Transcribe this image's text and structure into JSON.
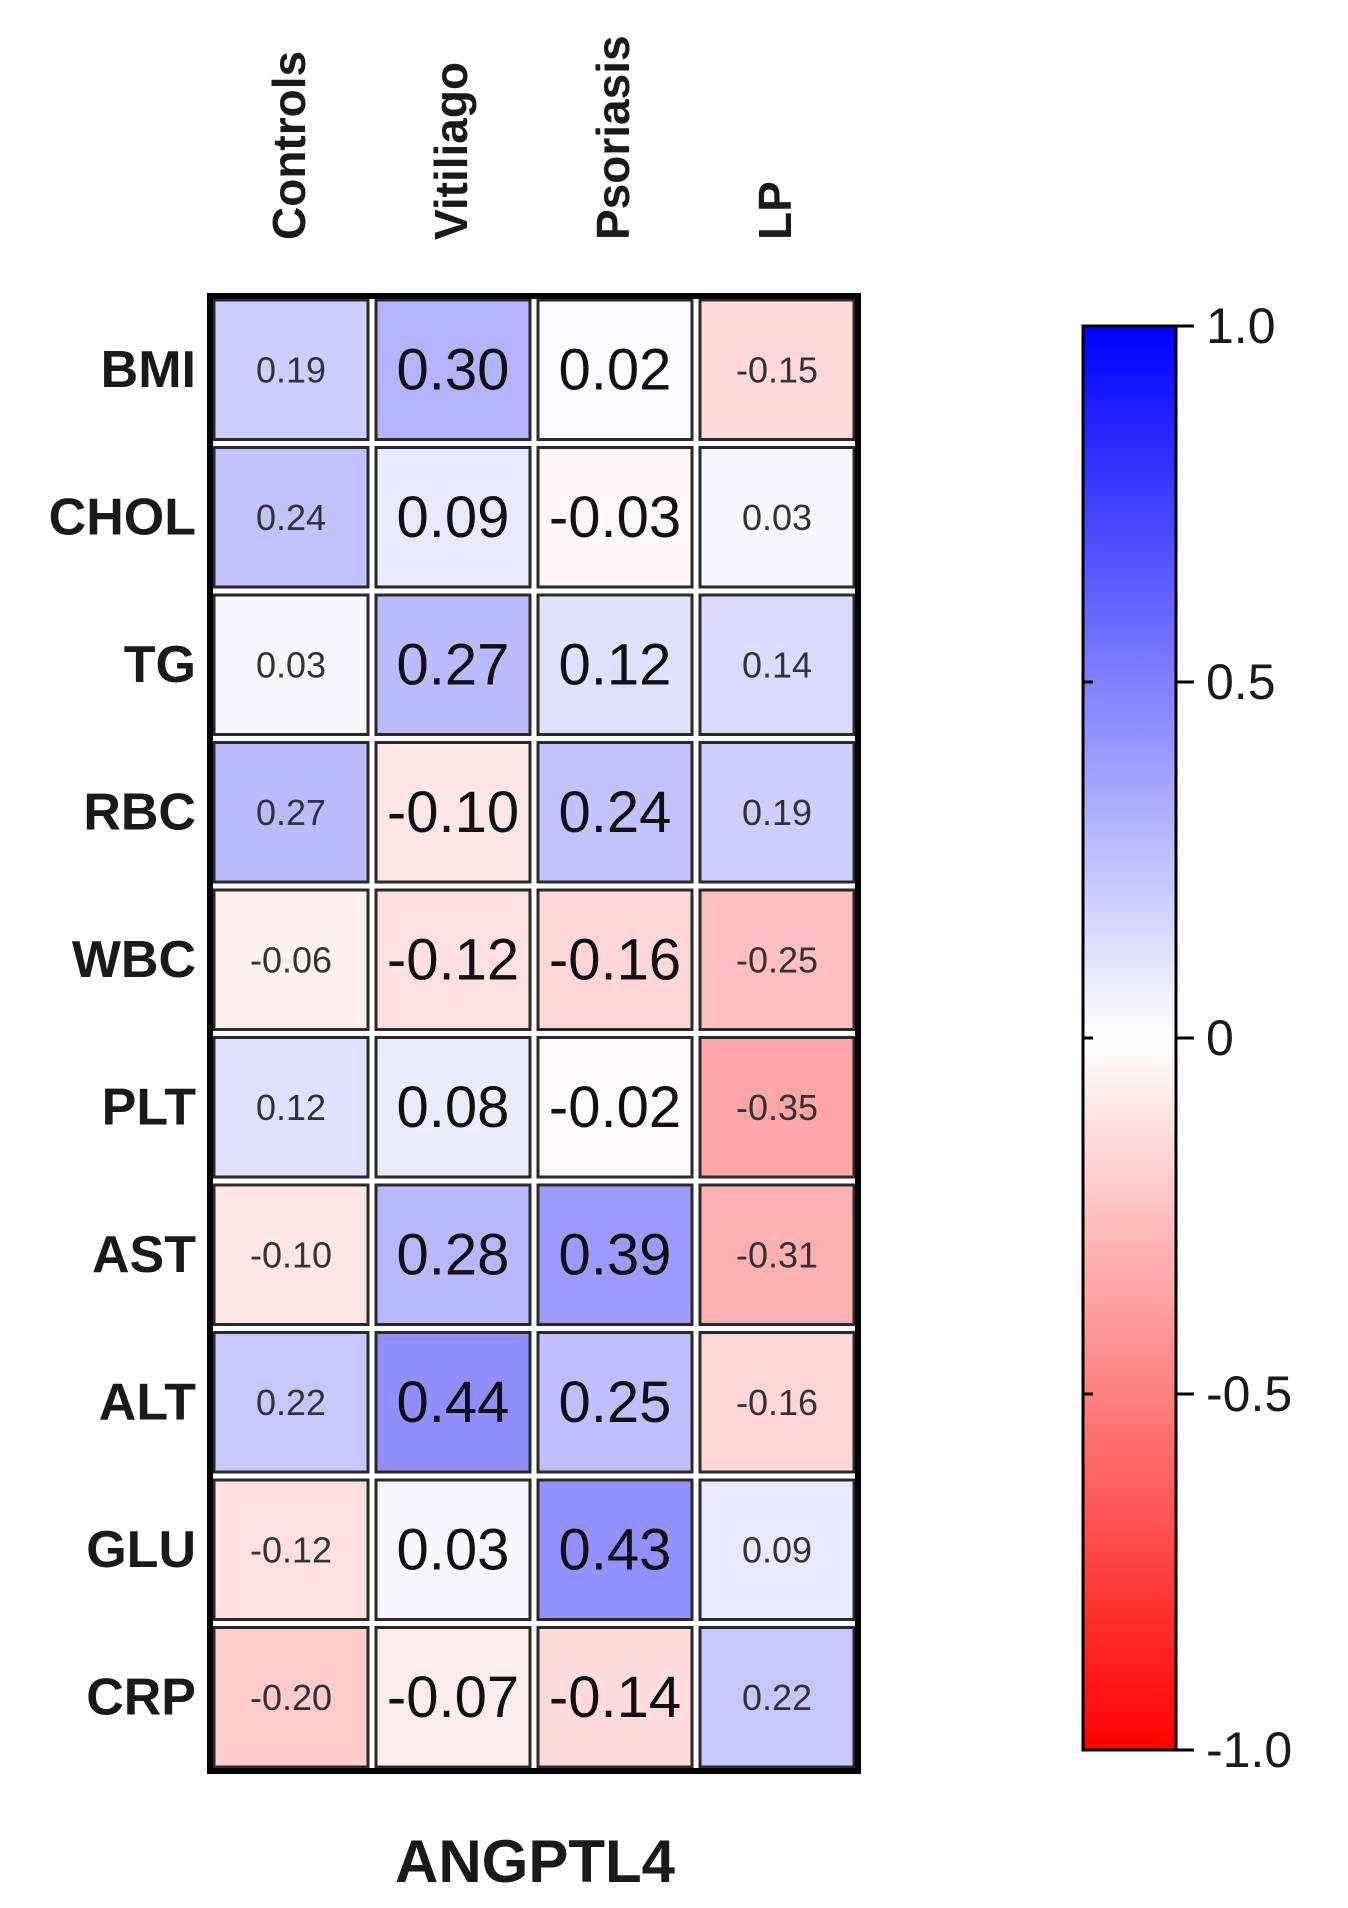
{
  "chart_data": {
    "type": "heatmap",
    "title": "ANGPTL4",
    "columns": [
      "Controls",
      "Vitiliago",
      "Psoriasis",
      "LP"
    ],
    "rows": [
      "BMI",
      "CHOL",
      "TG",
      "RBC",
      "WBC",
      "PLT",
      "AST",
      "ALT",
      "GLU",
      "CRP"
    ],
    "values": [
      [
        0.19,
        0.3,
        0.02,
        -0.15
      ],
      [
        0.24,
        0.09,
        -0.03,
        0.03
      ],
      [
        0.03,
        0.27,
        0.12,
        0.14
      ],
      [
        0.27,
        -0.1,
        0.24,
        0.19
      ],
      [
        -0.06,
        -0.12,
        -0.16,
        -0.25
      ],
      [
        0.12,
        0.08,
        -0.02,
        -0.35
      ],
      [
        -0.1,
        0.28,
        0.39,
        -0.31
      ],
      [
        0.22,
        0.44,
        0.25,
        -0.16
      ],
      [
        -0.12,
        0.03,
        0.43,
        0.09
      ],
      [
        -0.2,
        -0.07,
        -0.14,
        0.22
      ]
    ],
    "value_labels": [
      [
        "0.19",
        "0.30",
        "0.02",
        "-0.15"
      ],
      [
        "0.24",
        "0.09",
        "-0.03",
        "0.03"
      ],
      [
        "0.03",
        "0.27",
        "0.12",
        "0.14"
      ],
      [
        "0.27",
        "-0.10",
        "0.24",
        "0.19"
      ],
      [
        "-0.06",
        "-0.12",
        "-0.16",
        "-0.25"
      ],
      [
        "0.12",
        "0.08",
        "-0.02",
        "-0.35"
      ],
      [
        "-0.10",
        "0.28",
        "0.39",
        "-0.31"
      ],
      [
        "0.22",
        "0.44",
        "0.25",
        "-0.16"
      ],
      [
        "-0.12",
        "0.03",
        "0.43",
        "0.09"
      ],
      [
        "-0.20",
        "-0.07",
        "-0.14",
        "0.22"
      ]
    ],
    "colorbar": {
      "range": [
        -1.0,
        1.0
      ],
      "ticks": [
        1.0,
        0.5,
        0,
        -0.5,
        -1.0
      ],
      "tick_labels": [
        "1.0",
        "0.5",
        "0",
        "-0.5",
        "-1.0"
      ],
      "color_max": "#0000ff",
      "color_mid": "#ffffff",
      "color_min": "#ff0000"
    }
  }
}
